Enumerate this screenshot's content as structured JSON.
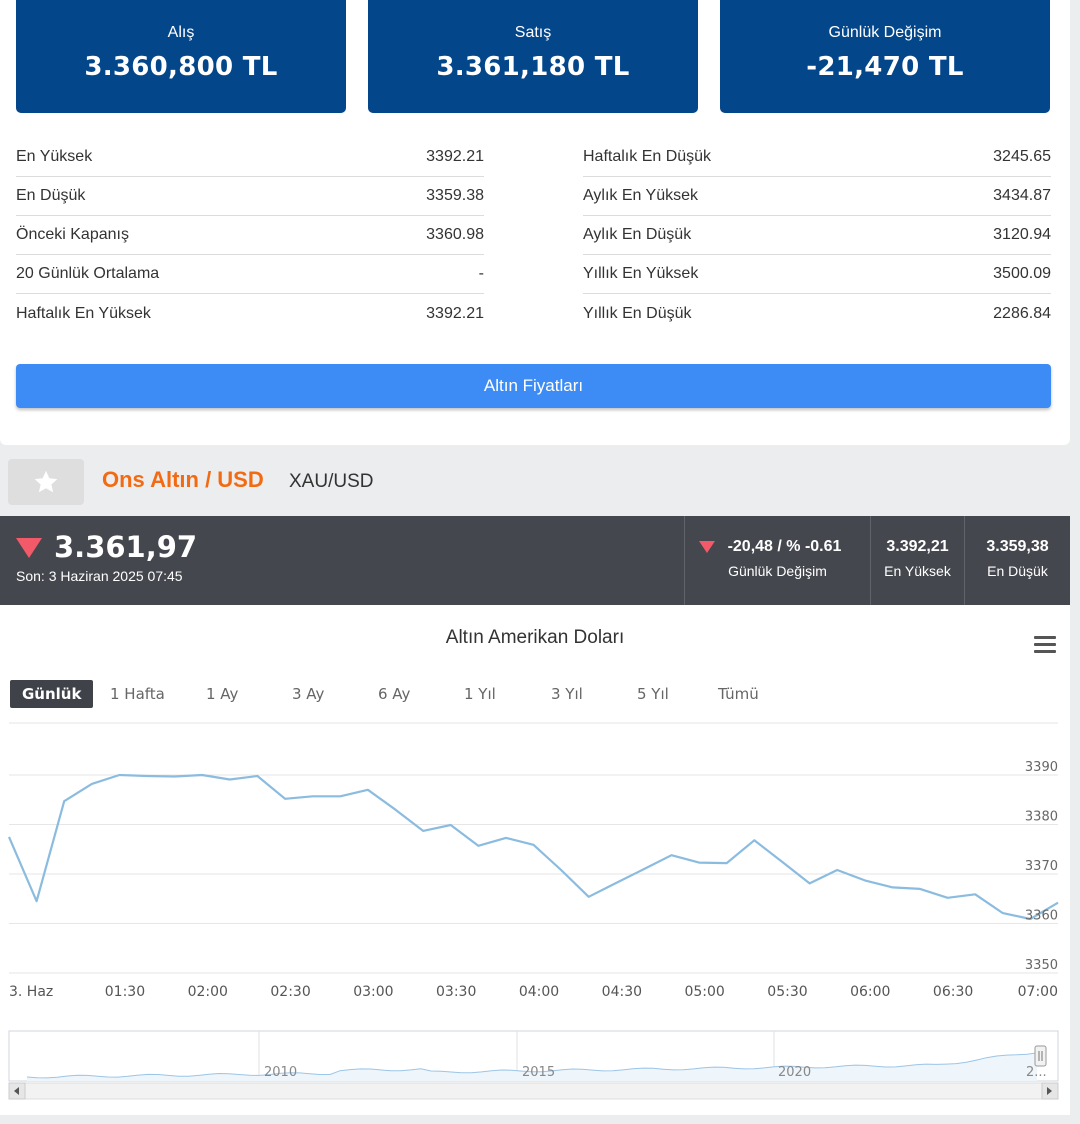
{
  "prices": {
    "buy": {
      "label": "Alış",
      "value": "3.360,800 TL"
    },
    "sell": {
      "label": "Satış",
      "value": "3.361,180 TL"
    },
    "change": {
      "label": "Günlük Değişim",
      "value": "-21,470 TL"
    }
  },
  "stats_left": [
    {
      "label": "En Yüksek",
      "value": "3392.21"
    },
    {
      "label": "En Düşük",
      "value": "3359.38"
    },
    {
      "label": "Önceki Kapanış",
      "value": "3360.98"
    },
    {
      "label": "20 Günlük Ortalama",
      "value": "-"
    },
    {
      "label": "Haftalık En Yüksek",
      "value": "3392.21"
    }
  ],
  "stats_right": [
    {
      "label": "Haftalık En Düşük",
      "value": "3245.65"
    },
    {
      "label": "Aylık En Yüksek",
      "value": "3434.87"
    },
    {
      "label": "Aylık En Düşük",
      "value": "3120.94"
    },
    {
      "label": "Yıllık En Yüksek",
      "value": "3500.09"
    },
    {
      "label": "Yıllık En Düşük",
      "value": "2286.84"
    }
  ],
  "gold_prices_button": "Altın Fiyatları",
  "instrument": {
    "name": "Ons Altın / USD",
    "symbol": "XAU/USD",
    "price": "3.361,97",
    "last_update": "Son: 3 Haziran 2025 07:45",
    "daily_change": "-20,48 / % -0.61",
    "daily_change_label": "Günlük Değişim",
    "high": "3.392,21",
    "high_label": "En Yüksek",
    "low": "3.359,38",
    "low_label": "En Düşük",
    "down_color": "#f25a6a"
  },
  "chart": {
    "title": "Altın Amerikan Doları",
    "ranges": [
      "Günlük",
      "1 Hafta",
      "1 Ay",
      "3 Ay",
      "6 Ay",
      "1 Yıl",
      "3 Yıl",
      "5 Yıl",
      "Tümü"
    ],
    "active_range": "Günlük",
    "line_color": "#8bbce0"
  },
  "chart_data": {
    "type": "line",
    "title": "Altın Amerikan Doları",
    "x": [
      "00:48",
      "00:58",
      "01:08",
      "01:18",
      "01:28",
      "01:38",
      "01:48",
      "01:58",
      "02:08",
      "02:18",
      "02:28",
      "02:38",
      "02:48",
      "02:58",
      "03:08",
      "03:18",
      "03:28",
      "03:38",
      "03:48",
      "03:58",
      "04:08",
      "04:18",
      "04:28",
      "04:38",
      "04:48",
      "04:58",
      "05:08",
      "05:18",
      "05:28",
      "05:38",
      "05:48",
      "05:58",
      "06:08",
      "06:18",
      "06:28",
      "06:38",
      "06:48",
      "06:58",
      "07:08"
    ],
    "values": [
      3377.5,
      3364.5,
      3384.7,
      3388.2,
      3390.0,
      3389.8,
      3389.7,
      3390.0,
      3389.1,
      3389.8,
      3385.2,
      3385.7,
      3385.7,
      3387.0,
      3383.0,
      3378.7,
      3379.9,
      3375.7,
      3377.3,
      3375.9,
      3370.8,
      3365.4,
      3368.2,
      3371.0,
      3373.8,
      3372.3,
      3372.2,
      3376.8,
      3372.5,
      3368.1,
      3370.8,
      3368.7,
      3367.3,
      3367.0,
      3365.2,
      3365.9,
      3362.1,
      3360.9,
      3364.2
    ],
    "x_ticks": [
      "3. Haz",
      "01:30",
      "02:00",
      "02:30",
      "03:00",
      "03:30",
      "04:00",
      "04:30",
      "05:00",
      "05:30",
      "06:00",
      "06:30",
      "07:00"
    ],
    "y_ticks": [
      3350,
      3360,
      3370,
      3380,
      3390
    ],
    "ylim": [
      3350,
      3400
    ],
    "grid": true,
    "navigator_years": [
      "2010",
      "2015",
      "2020",
      "2..."
    ]
  }
}
